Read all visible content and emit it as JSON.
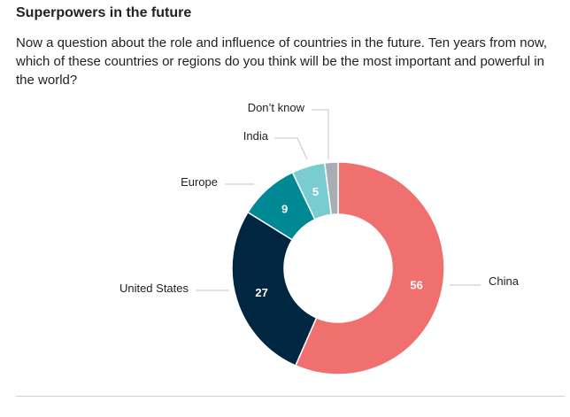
{
  "header": {
    "title": "Superpowers in the future",
    "question": "Now a question about the role and influence of countries in the future. Ten years from now, which of these countries or regions do you think will be the most important and powerful in the world?"
  },
  "chart_data": {
    "type": "pie",
    "variant": "donut",
    "title": "Superpowers in the future",
    "slices": [
      {
        "label": "China",
        "value": 56,
        "value_label": "56",
        "color": "#f07070"
      },
      {
        "label": "United States",
        "value": 27,
        "value_label": "27",
        "color": "#002642"
      },
      {
        "label": "Europe",
        "value": 9,
        "value_label": "9",
        "color": "#008894"
      },
      {
        "label": "India",
        "value": 5,
        "value_label": "5",
        "color": "#79cdd0"
      },
      {
        "label": "Don’t know",
        "value": 2,
        "value_label": "",
        "color": "#a8adb4"
      }
    ],
    "start_angle_deg": 0,
    "direction": "clockwise",
    "legend": "none",
    "labels": "outside-with-leader-lines"
  }
}
